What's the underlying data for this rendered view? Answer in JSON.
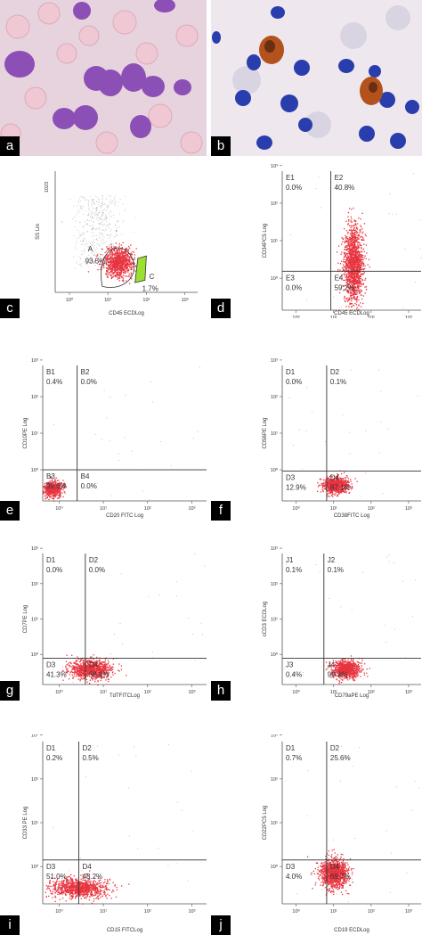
{
  "photos": [
    {
      "letter": "a"
    },
    {
      "letter": "b"
    }
  ],
  "plots": [
    {
      "letter": "c",
      "xlabel": "CD45 ECDLog",
      "ylabel": "SS Lin",
      "ytop": "1023",
      "gates": [
        {
          "name": "A",
          "value": "93.5%"
        },
        {
          "name": "C",
          "value": "1.7%"
        }
      ]
    },
    {
      "letter": "d",
      "xlabel": "CD45 ECDLog",
      "ylabel": "CD34PC5 Log",
      "quadrants": {
        "ul": "E1",
        "ur": "E2",
        "ll": "E3",
        "lr": "E4"
      },
      "values": {
        "ul": "0.0%",
        "ur": "40.8%",
        "ll": "0.0%",
        "lr": "59.2%"
      }
    },
    {
      "letter": "e",
      "xlabel": "CD20 FITC Log",
      "ylabel": "CD10PE Log",
      "quadrants": {
        "ul": "B1",
        "ur": "B2",
        "ll": "B3",
        "lr": "B4"
      },
      "values": {
        "ul": "0.4%",
        "ur": "0.0%",
        "ll": "99.6%",
        "lr": "0.0%"
      }
    },
    {
      "letter": "f",
      "xlabel": "CD38FITC Log",
      "ylabel": "CD56PE Log",
      "quadrants": {
        "ul": "D1",
        "ur": "D2",
        "ll": "D3",
        "lr": "D4"
      },
      "values": {
        "ul": "0.0%",
        "ur": "0.1%",
        "ll": "12.9%",
        "lr": "87.1%"
      }
    },
    {
      "letter": "g",
      "xlabel": "TdTFITCLog",
      "ylabel": "CD7PE Log",
      "quadrants": {
        "ul": "D1",
        "ur": "D2",
        "ll": "D3",
        "lr": "D4"
      },
      "values": {
        "ul": "0.0%",
        "ur": "0.0%",
        "ll": "41.3%",
        "lr": "58.6%"
      }
    },
    {
      "letter": "h",
      "xlabel": "CD79aPE Log",
      "ylabel": "cCD3 ECDLog",
      "quadrants": {
        "ul": "J1",
        "ur": "J2",
        "ll": "J3",
        "lr": "J4"
      },
      "values": {
        "ul": "0.1%",
        "ur": "0.1%",
        "ll": "0.4%",
        "lr": "99.4%"
      }
    },
    {
      "letter": "i",
      "xlabel": "CD15 FITCLog",
      "ylabel": "CD33 PE Log",
      "quadrants": {
        "ul": "D1",
        "ur": "D2",
        "ll": "D3",
        "lr": "D4"
      },
      "values": {
        "ul": "0.2%",
        "ur": "0.5%",
        "ll": "51.0%",
        "lr": "48.2%"
      }
    },
    {
      "letter": "j",
      "xlabel": "CD19 ECDLog",
      "ylabel": "CD22PC5 Log",
      "quadrants": {
        "ul": "D1",
        "ur": "D2",
        "ll": "D3",
        "lr": "D4"
      },
      "values": {
        "ul": "0.7%",
        "ur": "25.6%",
        "ll": "4.0%",
        "lr": "69.7%"
      }
    }
  ],
  "tick_labels": {
    "x": [
      "10⁰",
      "10¹",
      "10²",
      "10³"
    ],
    "y": [
      "10⁰",
      "10¹",
      "10²",
      "10³"
    ]
  },
  "colors": {
    "dots": "#e8343f",
    "gate_c": "#9be030",
    "photo_bg": "#e4d0dc",
    "cell_purple": "#8a4fb4",
    "cell_blue": "#2c3fae",
    "stain_brown": "#b4521e"
  }
}
